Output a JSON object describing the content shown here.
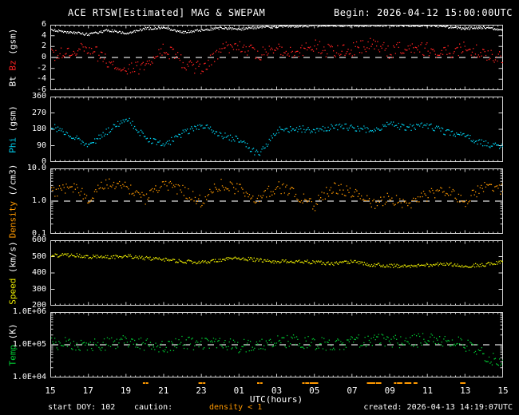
{
  "title": "ACE RTSW[Estimated] MAG & SWEPAM",
  "begin_label": "Begin: 2026-04-12 15:00:00UTC",
  "footer": {
    "start_doy": "start DOY: 102",
    "caution_label": "caution:",
    "caution_value": "density < 1",
    "caution_color": "#ff9900",
    "created": "created: 2026-04-13 14:19:07UTC"
  },
  "xaxis": {
    "label": "UTC(hours)",
    "tick_labels": [
      "15",
      "17",
      "19",
      "21",
      "23",
      "01",
      "03",
      "05",
      "07",
      "09",
      "11",
      "13",
      "15"
    ],
    "hours_span": 24
  },
  "colors": {
    "background": "#000000",
    "frame": "#d8d8d8",
    "dashed_line": "#e0e0e0",
    "bt": "#ffffff",
    "bz": "#ff2222",
    "phi": "#00cfee",
    "density": "#ff9900",
    "speed": "#e8e800",
    "temp": "#00cc33"
  },
  "chart_data": [
    {
      "name": "bt-bz",
      "type": "scatter",
      "scale": "linear",
      "ylim": [
        -6,
        6
      ],
      "yticks": [
        {
          "v": 6,
          "label": "6"
        },
        {
          "v": 4,
          "label": "4"
        },
        {
          "v": 2,
          "label": "2"
        },
        {
          "v": 0,
          "label": "0"
        },
        {
          "v": -2,
          "label": "-2"
        },
        {
          "v": -4,
          "label": "-4"
        },
        {
          "v": -6,
          "label": "-6"
        }
      ],
      "dashed_line_at": 0,
      "ylabel_parts": [
        {
          "text": "Bt ",
          "color": "#ffffff"
        },
        {
          "text": "Bz",
          "color": "#ff2222"
        },
        {
          "text": " (gsm)",
          "color": "#ffffff"
        }
      ],
      "series": [
        {
          "name": "Bt",
          "color": "#ffffff",
          "noise": 0.22,
          "samples": 567,
          "values": [
            5.0,
            4.6,
            4.2,
            5.0,
            4.4,
            5.3,
            5.5,
            4.6,
            5.0,
            5.4,
            5.2,
            5.5,
            5.6,
            5.7,
            5.8,
            5.9,
            5.8,
            5.9,
            5.9,
            5.8,
            5.9,
            5.6,
            5.3,
            5.5,
            5.0
          ]
        },
        {
          "name": "Bz",
          "color": "#ff2222",
          "noise": 1.3,
          "samples": 430,
          "values": [
            0.5,
            1.0,
            2.0,
            -1.0,
            -2.5,
            -1.5,
            1.5,
            -1.0,
            -2.0,
            1.5,
            2.0,
            0.5,
            1.5,
            1.0,
            2.0,
            1.0,
            1.5,
            2.5,
            1.0,
            2.0,
            1.5,
            1.0,
            2.0,
            0.5,
            0.0
          ]
        }
      ]
    },
    {
      "name": "phi",
      "type": "scatter",
      "scale": "linear",
      "ylim": [
        0,
        360
      ],
      "yticks": [
        {
          "v": 360,
          "label": "360"
        },
        {
          "v": 270,
          "label": "270"
        },
        {
          "v": 180,
          "label": "180"
        },
        {
          "v": 90,
          "label": "90"
        },
        {
          "v": 0,
          "label": "0"
        }
      ],
      "dashed_line_at": null,
      "ylabel_parts": [
        {
          "text": "Phi",
          "color": "#00cfee"
        },
        {
          "text": " (gsm)",
          "color": "#ffffff"
        }
      ],
      "series": [
        {
          "name": "Phi",
          "color": "#00cfee",
          "noise": 18,
          "samples": 430,
          "values": [
            200,
            145,
            95,
            170,
            240,
            130,
            90,
            160,
            200,
            150,
            120,
            40,
            175,
            185,
            175,
            195,
            190,
            175,
            205,
            190,
            200,
            165,
            145,
            100,
            90
          ]
        }
      ]
    },
    {
      "name": "density",
      "type": "scatter",
      "scale": "log",
      "ylim": [
        0.1,
        10
      ],
      "yticks": [
        {
          "v": 10,
          "label": "10.0"
        },
        {
          "v": 1,
          "label": "1.0"
        },
        {
          "v": 0.1,
          "label": "0.1"
        }
      ],
      "dashed_line_at": 1,
      "ylabel_parts": [
        {
          "text": "Density",
          "color": "#ff9900"
        },
        {
          "text": " (/cm3)",
          "color": "#ffffff"
        }
      ],
      "series": [
        {
          "name": "Density",
          "color": "#ff9900",
          "noise": 0.18,
          "samples": 400,
          "values": [
            1.8,
            2.8,
            1.2,
            3.5,
            2.5,
            1.0,
            3.0,
            2.0,
            0.9,
            3.2,
            2.2,
            1.0,
            2.8,
            1.5,
            0.7,
            2.5,
            1.8,
            0.8,
            1.2,
            0.7,
            1.5,
            2.2,
            0.8,
            2.8,
            2.2
          ]
        }
      ]
    },
    {
      "name": "speed",
      "type": "scatter",
      "scale": "linear",
      "ylim": [
        200,
        600
      ],
      "yticks": [
        {
          "v": 600,
          "label": "600"
        },
        {
          "v": 500,
          "label": "500"
        },
        {
          "v": 400,
          "label": "400"
        },
        {
          "v": 300,
          "label": "300"
        },
        {
          "v": 200,
          "label": "200"
        }
      ],
      "dashed_line_at": null,
      "ylabel_parts": [
        {
          "text": "Speed",
          "color": "#e8e800"
        },
        {
          "text": " (km/s)",
          "color": "#ffffff"
        }
      ],
      "series": [
        {
          "name": "Speed",
          "color": "#e8e800",
          "noise": 11,
          "samples": 500,
          "values": [
            505,
            510,
            500,
            495,
            505,
            490,
            480,
            470,
            465,
            480,
            490,
            478,
            468,
            472,
            465,
            455,
            470,
            450,
            445,
            438,
            448,
            455,
            442,
            450,
            465
          ]
        }
      ]
    },
    {
      "name": "temp",
      "type": "scatter",
      "scale": "log",
      "ylim": [
        10000,
        1000000
      ],
      "yticks": [
        {
          "v": 1000000,
          "label": "1.0E+06"
        },
        {
          "v": 100000,
          "label": "1.0E+05"
        },
        {
          "v": 10000,
          "label": "1.0E+04"
        }
      ],
      "dashed_line_at": 100000,
      "ylabel_parts": [
        {
          "text": "Temp",
          "color": "#00cc33"
        },
        {
          "text": " (K)",
          "color": "#ffffff"
        }
      ],
      "series": [
        {
          "name": "Temp",
          "color": "#00cc33",
          "noise": 0.2,
          "samples": 430,
          "values": [
            120000,
            100000,
            90000,
            110000,
            130000,
            100000,
            85000,
            120000,
            100000,
            110000,
            90000,
            100000,
            120000,
            130000,
            110000,
            100000,
            120000,
            140000,
            130000,
            120000,
            150000,
            130000,
            100000,
            45000,
            30000
          ]
        }
      ]
    }
  ],
  "caution_strip": {
    "threshold": 1,
    "color": "#ff9900",
    "source_panel": "density"
  }
}
